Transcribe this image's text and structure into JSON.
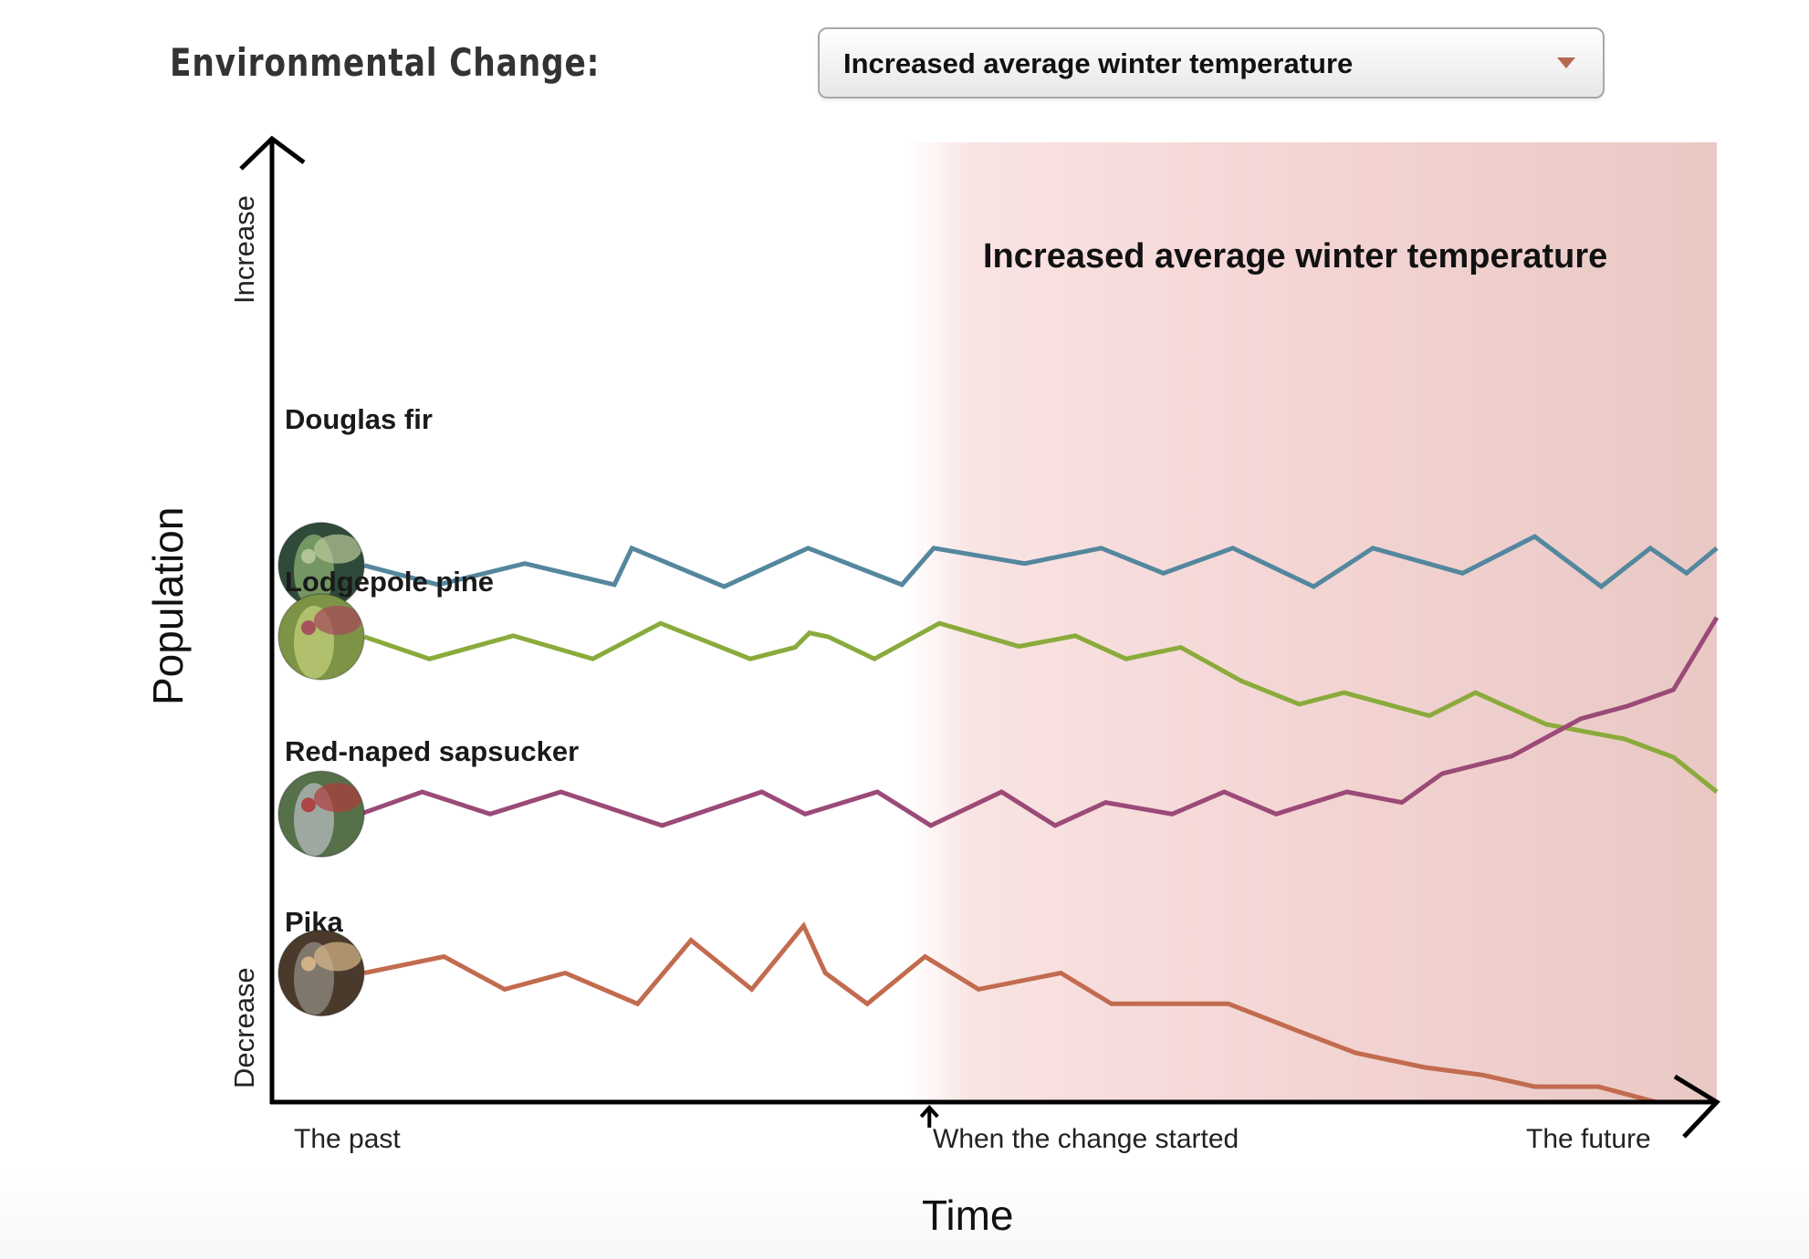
{
  "header": {
    "label": "Environmental Change:",
    "dropdown": {
      "selected": "Increased average winter temperature",
      "caret_icon": "triangle-down-icon",
      "caret_color": "#b5684e"
    }
  },
  "chart_data": {
    "type": "line",
    "title": "Increased average winter temperature",
    "xlabel": "Time",
    "ylabel": "Population",
    "y_end_labels": {
      "top": "Increase",
      "bottom": "Decrease"
    },
    "x_tick_labels": [
      {
        "at": 0.0,
        "label": "The past"
      },
      {
        "at": 0.455,
        "label": "When the change started",
        "marker": "up-arrow"
      },
      {
        "at": 0.95,
        "label": "The future"
      }
    ],
    "xlim": [
      0,
      1
    ],
    "ylim": [
      0,
      100
    ],
    "x_units": "fraction of timeline (0 = the past, 1 = the future)",
    "y_units": "relative population index (0 = axis bottom, 100 = axis top)",
    "highlight_region": {
      "from": 0.458,
      "to": 1.0,
      "label": "Increased average winter temperature",
      "color": "#e9c4c2"
    },
    "grid": false,
    "legend": "inline-left",
    "series": [
      {
        "name": "Douglas fir",
        "color": "#54879e",
        "icon": "douglas-fir-photo",
        "points": [
          [
            0.064,
            55.7
          ],
          [
            0.115,
            53.7
          ],
          [
            0.175,
            55.9
          ],
          [
            0.237,
            53.7
          ],
          [
            0.249,
            57.5
          ],
          [
            0.313,
            53.5
          ],
          [
            0.371,
            57.5
          ],
          [
            0.436,
            53.7
          ],
          [
            0.458,
            57.5
          ],
          [
            0.521,
            55.9
          ],
          [
            0.574,
            57.5
          ],
          [
            0.617,
            54.9
          ],
          [
            0.665,
            57.5
          ],
          [
            0.721,
            53.5
          ],
          [
            0.762,
            57.5
          ],
          [
            0.824,
            54.9
          ],
          [
            0.874,
            58.7
          ],
          [
            0.92,
            53.5
          ],
          [
            0.954,
            57.5
          ],
          [
            0.979,
            54.9
          ],
          [
            1.0,
            57.5
          ]
        ]
      },
      {
        "name": "Lodgepole pine",
        "color": "#8aab3c",
        "icon": "lodgepole-pine-photo",
        "points": [
          [
            0.064,
            48.3
          ],
          [
            0.109,
            46.0
          ],
          [
            0.167,
            48.4
          ],
          [
            0.222,
            46.0
          ],
          [
            0.269,
            49.7
          ],
          [
            0.331,
            46.0
          ],
          [
            0.362,
            47.2
          ],
          [
            0.372,
            48.7
          ],
          [
            0.385,
            48.3
          ],
          [
            0.417,
            46.0
          ],
          [
            0.462,
            49.7
          ],
          [
            0.517,
            47.3
          ],
          [
            0.556,
            48.4
          ],
          [
            0.591,
            46.0
          ],
          [
            0.629,
            47.2
          ],
          [
            0.671,
            43.7
          ],
          [
            0.711,
            41.3
          ],
          [
            0.742,
            42.5
          ],
          [
            0.801,
            40.1
          ],
          [
            0.833,
            42.5
          ],
          [
            0.882,
            39.2
          ],
          [
            0.936,
            37.7
          ],
          [
            0.97,
            35.8
          ],
          [
            1.0,
            32.2
          ]
        ]
      },
      {
        "name": "Red-naped sapsucker",
        "color": "#9b4a78",
        "icon": "sapsucker-photo",
        "points": [
          [
            0.061,
            29.9
          ],
          [
            0.104,
            32.2
          ],
          [
            0.151,
            29.9
          ],
          [
            0.2,
            32.2
          ],
          [
            0.27,
            28.7
          ],
          [
            0.339,
            32.2
          ],
          [
            0.369,
            29.9
          ],
          [
            0.419,
            32.2
          ],
          [
            0.456,
            28.7
          ],
          [
            0.505,
            32.2
          ],
          [
            0.542,
            28.7
          ],
          [
            0.577,
            31.1
          ],
          [
            0.623,
            29.9
          ],
          [
            0.659,
            32.2
          ],
          [
            0.695,
            29.9
          ],
          [
            0.744,
            32.2
          ],
          [
            0.782,
            31.1
          ],
          [
            0.81,
            34.1
          ],
          [
            0.858,
            35.9
          ],
          [
            0.906,
            39.8
          ],
          [
            0.938,
            41.1
          ],
          [
            0.97,
            42.8
          ],
          [
            1.0,
            50.3
          ]
        ]
      },
      {
        "name": "Pika",
        "color": "#c26b4f",
        "icon": "pika-photo",
        "points": [
          [
            0.064,
            13.4
          ],
          [
            0.119,
            15.1
          ],
          [
            0.161,
            11.7
          ],
          [
            0.203,
            13.4
          ],
          [
            0.253,
            10.2
          ],
          [
            0.29,
            16.8
          ],
          [
            0.332,
            11.7
          ],
          [
            0.368,
            18.3
          ],
          [
            0.383,
            13.4
          ],
          [
            0.412,
            10.2
          ],
          [
            0.452,
            15.1
          ],
          [
            0.489,
            11.7
          ],
          [
            0.546,
            13.4
          ],
          [
            0.581,
            10.2
          ],
          [
            0.662,
            10.2
          ],
          [
            0.71,
            7.4
          ],
          [
            0.75,
            5.1
          ],
          [
            0.798,
            3.6
          ],
          [
            0.838,
            2.8
          ],
          [
            0.874,
            1.6
          ],
          [
            0.918,
            1.6
          ],
          [
            0.958,
            0.0
          ],
          [
            1.0,
            0.0
          ]
        ]
      }
    ]
  }
}
